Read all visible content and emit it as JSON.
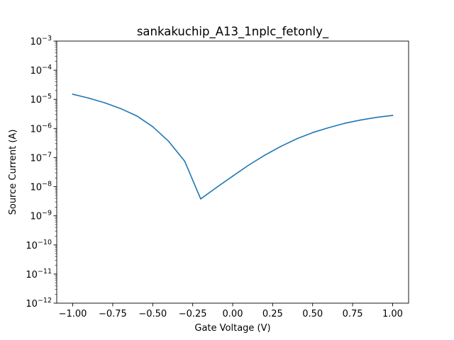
{
  "chart_data": {
    "type": "line",
    "title": "sankakuchip_A13_1nplc_fetonly_",
    "xlabel": "Gate Voltage (V)",
    "ylabel": "Source Current (A)",
    "xlim": [
      -1.1,
      1.1
    ],
    "ylim": [
      1e-12,
      0.001
    ],
    "yscale": "log",
    "grid": false,
    "xticks": [
      -1.0,
      -0.75,
      -0.5,
      -0.25,
      0.0,
      0.25,
      0.5,
      0.75,
      1.0
    ],
    "xtick_labels": [
      "−1.00",
      "−0.75",
      "−0.50",
      "−0.25",
      "0.00",
      "0.25",
      "0.50",
      "0.75",
      "1.00"
    ],
    "yticks": [
      {
        "base": "10",
        "exp": "−12",
        "value": 1e-12
      },
      {
        "base": "10",
        "exp": "−11",
        "value": 1e-11
      },
      {
        "base": "10",
        "exp": "−10",
        "value": 1e-10
      },
      {
        "base": "10",
        "exp": "−9",
        "value": 1e-09
      },
      {
        "base": "10",
        "exp": "−8",
        "value": 1e-08
      },
      {
        "base": "10",
        "exp": "−7",
        "value": 1e-07
      },
      {
        "base": "10",
        "exp": "−6",
        "value": 1e-06
      },
      {
        "base": "10",
        "exp": "−5",
        "value": 1e-05
      },
      {
        "base": "10",
        "exp": "−4",
        "value": 0.0001
      },
      {
        "base": "10",
        "exp": "−3",
        "value": 0.001
      }
    ],
    "series": [
      {
        "color": "#1f77b4",
        "x": [
          -1.0,
          -0.9,
          -0.8,
          -0.7,
          -0.6,
          -0.5,
          -0.4,
          -0.3,
          -0.2,
          -0.1,
          0.0,
          0.1,
          0.2,
          0.3,
          0.4,
          0.5,
          0.6,
          0.7,
          0.8,
          0.9,
          1.0
        ],
        "y": [
          1.5e-05,
          1.1e-05,
          7.6e-06,
          4.8e-06,
          2.7e-06,
          1.15e-06,
          3.6e-07,
          7.5e-08,
          3.8e-09,
          9.5e-09,
          2.3e-08,
          5.5e-08,
          1.2e-07,
          2.4e-07,
          4.4e-07,
          7.2e-07,
          1.06e-06,
          1.5e-06,
          1.95e-06,
          2.4e-06,
          2.8e-06
        ]
      }
    ]
  }
}
